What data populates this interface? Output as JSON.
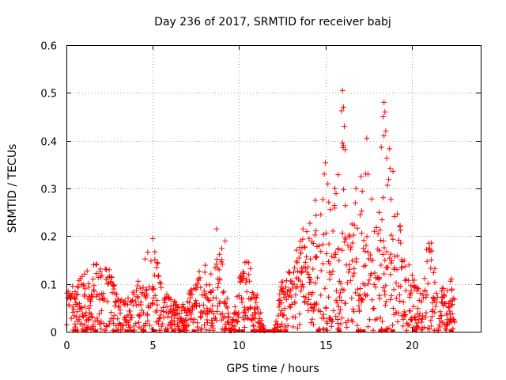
{
  "chart_data": {
    "type": "scatter",
    "title": "Day 236 of 2017, SRMTID for receiver babj",
    "xlabel": "GPS time / hours",
    "ylabel": "SRMTID / TECUs",
    "xlim": [
      0,
      24
    ],
    "ylim": [
      0,
      0.6
    ],
    "xticks": [
      0,
      5,
      10,
      15,
      20
    ],
    "xtick_labels": [
      "0",
      "5",
      "10",
      "15",
      "20"
    ],
    "yticks": [
      0,
      0.1,
      0.2,
      0.3,
      0.4,
      0.5,
      0.6
    ],
    "ytick_labels": [
      "0",
      "0.1",
      "0.2",
      "0.3",
      "0.4",
      "0.5",
      "0.6"
    ],
    "grid": true,
    "marker": "+",
    "color": "#ff0000",
    "series": [
      {
        "name": "SRMTID",
        "envelope": [
          [
            0.0,
            0.08,
            0.1
          ],
          [
            0.5,
            0.07,
            0.1
          ],
          [
            1.0,
            0.08,
            0.12
          ],
          [
            1.5,
            0.09,
            0.15
          ],
          [
            2.0,
            0.09,
            0.14
          ],
          [
            2.5,
            0.1,
            0.13
          ],
          [
            3.0,
            0.07,
            0.08
          ],
          [
            3.5,
            0.05,
            0.07
          ],
          [
            4.0,
            0.07,
            0.09
          ],
          [
            4.5,
            0.09,
            0.15
          ],
          [
            5.0,
            0.1,
            0.19
          ],
          [
            5.5,
            0.08,
            0.11
          ],
          [
            6.0,
            0.05,
            0.07
          ],
          [
            6.5,
            0.04,
            0.06
          ],
          [
            7.0,
            0.05,
            0.07
          ],
          [
            7.5,
            0.09,
            0.12
          ],
          [
            8.0,
            0.1,
            0.14
          ],
          [
            8.5,
            0.11,
            0.15
          ],
          [
            9.0,
            0.11,
            0.19
          ],
          [
            9.5,
            0.0,
            0.0
          ],
          [
            10.0,
            0.09,
            0.11
          ],
          [
            10.5,
            0.12,
            0.16
          ],
          [
            11.0,
            0.07,
            0.09
          ],
          [
            11.5,
            0.0,
            0.0
          ],
          [
            12.0,
            0.0,
            0.0
          ],
          [
            12.5,
            0.1,
            0.12
          ],
          [
            13.0,
            0.1,
            0.13
          ],
          [
            13.5,
            0.13,
            0.2
          ],
          [
            14.0,
            0.15,
            0.25
          ],
          [
            14.5,
            0.16,
            0.3
          ],
          [
            15.0,
            0.17,
            0.36
          ],
          [
            15.5,
            0.18,
            0.3
          ],
          [
            16.0,
            0.2,
            0.5
          ],
          [
            16.5,
            0.19,
            0.3
          ],
          [
            17.0,
            0.17,
            0.33
          ],
          [
            17.5,
            0.2,
            0.36
          ],
          [
            18.0,
            0.22,
            0.34
          ],
          [
            18.5,
            0.2,
            0.48
          ],
          [
            19.0,
            0.19,
            0.35
          ],
          [
            19.5,
            0.14,
            0.2
          ],
          [
            20.0,
            0.09,
            0.12
          ],
          [
            20.5,
            0.07,
            0.1
          ],
          [
            21.0,
            0.16,
            0.22
          ],
          [
            21.5,
            0.08,
            0.1
          ],
          [
            22.0,
            0.06,
            0.09
          ],
          [
            22.5,
            0.08,
            0.13
          ]
        ],
        "zero_points": [
          0.5,
          1.0,
          1.7,
          2.8,
          3.5,
          3.8,
          4.5,
          5.1,
          5.8,
          6.2,
          6.7,
          7.4,
          9.9,
          10.2,
          10.8,
          11.1,
          11.4,
          11.6,
          11.8,
          12.0,
          12.2,
          12.4,
          12.7,
          14.6,
          15.8,
          16.9,
          17.2,
          18.2,
          18.5,
          18.9,
          20.2,
          22.3
        ],
        "peaks": [
          [
            16.0,
            0.505
          ],
          [
            16.05,
            0.47
          ],
          [
            16.1,
            0.43
          ],
          [
            16.0,
            0.395
          ],
          [
            16.05,
            0.39
          ],
          [
            18.4,
            0.48
          ],
          [
            18.45,
            0.46
          ],
          [
            18.35,
            0.45
          ],
          [
            18.5,
            0.42
          ],
          [
            18.4,
            0.41
          ],
          [
            8.7,
            0.215
          ],
          [
            5.0,
            0.195
          ],
          [
            9.2,
            0.19
          ],
          [
            17.4,
            0.405
          ]
        ]
      }
    ]
  }
}
